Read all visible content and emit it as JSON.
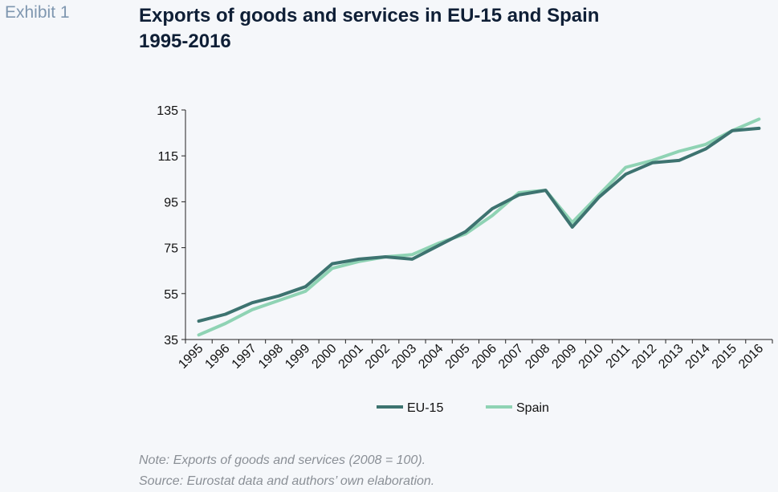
{
  "header": {
    "exhibit": "Exhibit 1",
    "title_line1": "Exports of goods and services in EU-15 and Spain",
    "title_line2": "1995-2016"
  },
  "notes": {
    "note": "Note: Exports of goods and services (2008 = 100).",
    "source": "Source: Eurostat data and authors’ own elaboration."
  },
  "colors": {
    "eu15": "#3d7370",
    "spain": "#8fd3b4",
    "axis": "#222222"
  },
  "chart_data": {
    "type": "line",
    "title": "Exports of goods and services in EU-15 and Spain 1995-2016",
    "xlabel": "",
    "ylabel": "",
    "x": [
      "1995",
      "1996",
      "1997",
      "1998",
      "1999",
      "2000",
      "2001",
      "2002",
      "2003",
      "2004",
      "2005",
      "2006",
      "2007",
      "2008",
      "2009",
      "2010",
      "2011",
      "2012",
      "2013",
      "2014",
      "2015",
      "2016"
    ],
    "yticks": [
      35,
      55,
      75,
      95,
      115,
      135
    ],
    "ylim": [
      35,
      135
    ],
    "grid": false,
    "legend_position": "bottom-center",
    "series": [
      {
        "name": "EU-15",
        "values": [
          43,
          46,
          51,
          54,
          58,
          68,
          70,
          71,
          70,
          76,
          82,
          92,
          98,
          100,
          84,
          97,
          107,
          112,
          113,
          118,
          126,
          127
        ]
      },
      {
        "name": "Spain",
        "values": [
          37,
          42,
          48,
          52,
          56,
          66,
          69,
          71,
          72,
          77,
          81,
          89,
          99,
          100,
          86,
          98,
          110,
          113,
          117,
          120,
          126,
          131
        ]
      }
    ]
  }
}
